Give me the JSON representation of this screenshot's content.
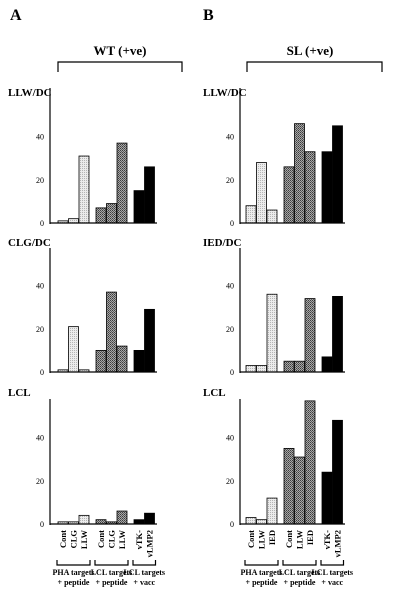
{
  "panels": [
    {
      "letter": "A",
      "title": "WT (+ve)"
    },
    {
      "letter": "B",
      "title": "SL (+ve)"
    }
  ],
  "colors": {
    "light": "#e6e6e6",
    "medium": "#8e8e8e",
    "dark": "#000000"
  },
  "chart_data": [
    {
      "type": "bar",
      "panel": "A",
      "row_label": "LLW/DC",
      "ylim": [
        0,
        50
      ],
      "yticks": [
        0,
        20,
        40
      ],
      "groups": [
        {
          "name": "PHA targets + peptide",
          "categories": [
            "Cont",
            "CLG",
            "LLW"
          ],
          "values": [
            1,
            2,
            31
          ],
          "fill": "light"
        },
        {
          "name": "LCL targets + peptide",
          "categories": [
            "Cont",
            "CLG",
            "LLW"
          ],
          "values": [
            7,
            9,
            37
          ],
          "fill": "medium"
        },
        {
          "name": "LCL targets + vacc",
          "categories": [
            "vTK-",
            "vLMP2"
          ],
          "values": [
            15,
            26
          ],
          "fill": "dark"
        }
      ]
    },
    {
      "type": "bar",
      "panel": "A",
      "row_label": "CLG/DC",
      "ylim": [
        0,
        50
      ],
      "yticks": [
        0,
        20,
        40
      ],
      "groups": [
        {
          "name": "PHA targets + peptide",
          "categories": [
            "Cont",
            "CLG",
            "LLW"
          ],
          "values": [
            1,
            21,
            1
          ],
          "fill": "light"
        },
        {
          "name": "LCL targets + peptide",
          "categories": [
            "Cont",
            "CLG",
            "LLW"
          ],
          "values": [
            10,
            37,
            12
          ],
          "fill": "medium"
        },
        {
          "name": "LCL targets + vacc",
          "categories": [
            "vTK-",
            "vLMP2"
          ],
          "values": [
            10,
            29
          ],
          "fill": "dark"
        }
      ]
    },
    {
      "type": "bar",
      "panel": "A",
      "row_label": "LCL",
      "ylim": [
        0,
        50
      ],
      "yticks": [
        0,
        20,
        40
      ],
      "groups": [
        {
          "name": "PHA targets + peptide",
          "categories": [
            "Cont",
            "CLG",
            "LLW"
          ],
          "values": [
            1,
            1,
            4
          ],
          "fill": "light"
        },
        {
          "name": "LCL targets + peptide",
          "categories": [
            "Cont",
            "CLG",
            "LLW"
          ],
          "values": [
            2,
            1,
            6
          ],
          "fill": "medium"
        },
        {
          "name": "LCL targets + vacc",
          "categories": [
            "vTK-",
            "vLMP2"
          ],
          "values": [
            2,
            5
          ],
          "fill": "dark"
        }
      ]
    },
    {
      "type": "bar",
      "panel": "B",
      "row_label": "LLW/DC",
      "ylim": [
        0,
        50
      ],
      "yticks": [
        0,
        20,
        40
      ],
      "groups": [
        {
          "name": "PHA targets + peptide",
          "categories": [
            "Cont",
            "LLW",
            "IED"
          ],
          "values": [
            8,
            28,
            6
          ],
          "fill": "light"
        },
        {
          "name": "LCL targets + peptide",
          "categories": [
            "Cont",
            "LLW",
            "IED"
          ],
          "values": [
            26,
            46,
            33
          ],
          "fill": "medium"
        },
        {
          "name": "LCL targets + vacc",
          "categories": [
            "vTK-",
            "vLMP2"
          ],
          "values": [
            33,
            45
          ],
          "fill": "dark"
        }
      ]
    },
    {
      "type": "bar",
      "panel": "B",
      "row_label": "IED/DC",
      "ylim": [
        0,
        50
      ],
      "yticks": [
        0,
        20,
        40
      ],
      "groups": [
        {
          "name": "PHA targets + peptide",
          "categories": [
            "Cont",
            "LLW",
            "IED"
          ],
          "values": [
            3,
            3,
            36
          ],
          "fill": "light"
        },
        {
          "name": "LCL targets + peptide",
          "categories": [
            "Cont",
            "LLW",
            "IED"
          ],
          "values": [
            5,
            5,
            34
          ],
          "fill": "medium"
        },
        {
          "name": "LCL targets + vacc",
          "categories": [
            "vTK-",
            "vLMP2"
          ],
          "values": [
            7,
            35
          ],
          "fill": "dark"
        }
      ]
    },
    {
      "type": "bar",
      "panel": "B",
      "row_label": "LCL",
      "ylim": [
        0,
        60
      ],
      "yticks": [
        0,
        20,
        40
      ],
      "groups": [
        {
          "name": "PHA targets + peptide",
          "categories": [
            "Cont",
            "LLW",
            "IED"
          ],
          "values": [
            3,
            2,
            12
          ],
          "fill": "light"
        },
        {
          "name": "LCL targets + peptide",
          "categories": [
            "Cont",
            "LLW",
            "IED"
          ],
          "values": [
            35,
            31,
            57
          ],
          "fill": "medium"
        },
        {
          "name": "LCL targets + vacc",
          "categories": [
            "vTK-",
            "vLMP2"
          ],
          "values": [
            24,
            48
          ],
          "fill": "dark"
        }
      ]
    }
  ],
  "x_axis": {
    "A": {
      "categories": [
        "Cont",
        "CLG",
        "LLW",
        "Cont",
        "CLG",
        "LLW",
        "vTK-",
        "vLMP2"
      ],
      "groups": [
        [
          "PHA targets",
          "+ peptide"
        ],
        [
          "LCL targets",
          "+ peptide"
        ],
        [
          "LCL targets",
          "+ vacc"
        ]
      ]
    },
    "B": {
      "categories": [
        "Cont",
        "LLW",
        "IED",
        "Cont",
        "LLW",
        "IED",
        "vTK-",
        "vLMP2"
      ],
      "groups": [
        [
          "PHA targets",
          "+ peptide"
        ],
        [
          "LCL targets",
          "+ peptide"
        ],
        [
          "LCL targets",
          "+ vacc"
        ]
      ]
    }
  }
}
